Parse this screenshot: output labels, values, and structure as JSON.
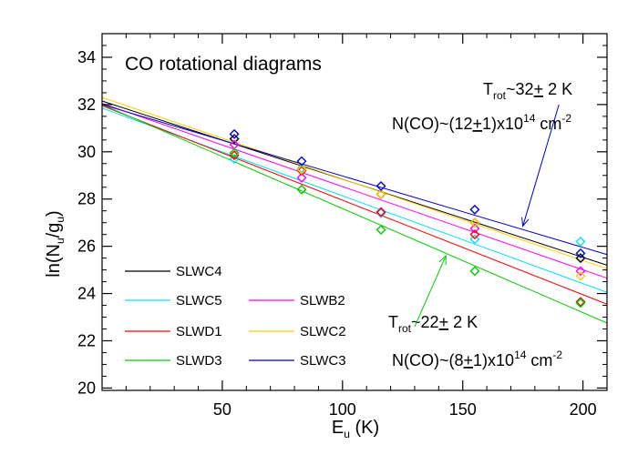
{
  "chart_data": {
    "type": "scatter",
    "title": "CO rotational diagrams",
    "xlabel": {
      "main": "E",
      "sub": "u",
      "tail": " (K)"
    },
    "ylabel": {
      "parts": [
        "ln(N",
        "u",
        "/g",
        "u",
        ")"
      ]
    },
    "xlim": [
      0,
      210
    ],
    "ylim": [
      19.9,
      35
    ],
    "x_ticks": [
      50,
      100,
      150,
      200
    ],
    "x_tick_labels": [
      "50",
      "100",
      "150",
      "200"
    ],
    "y_ticks": [
      20,
      22,
      24,
      26,
      28,
      30,
      32,
      34
    ],
    "y_tick_labels": [
      "20",
      "22",
      "24",
      "26",
      "28",
      "30",
      "32",
      "34"
    ],
    "grid": false,
    "legend_placement": "bottom-left",
    "series": [
      {
        "name": "SLWC4",
        "color": "#000000",
        "x": [
          55,
          83,
          116,
          155,
          199
        ],
        "y": [
          30.55,
          29.25,
          28.2,
          27.0,
          25.5
        ],
        "fit": [
          [
            0,
            32.15
          ],
          [
            210,
            25.2
          ]
        ]
      },
      {
        "name": "SLWC5",
        "color": "#00e0ff",
        "x": [
          55,
          83,
          116,
          155,
          199
        ],
        "y": [
          29.7,
          29.3,
          27.4,
          26.3,
          26.2
        ],
        "fit": [
          [
            0,
            31.85
          ],
          [
            210,
            24.05
          ]
        ]
      },
      {
        "name": "SLWB2",
        "color": "#ff00ff",
        "x": [
          55,
          83,
          116,
          155,
          199
        ],
        "y": [
          30.3,
          28.9,
          27.45,
          26.75,
          24.95
        ],
        "fit": [
          [
            0,
            32.05
          ],
          [
            210,
            24.65
          ]
        ]
      },
      {
        "name": "SLWD1",
        "color": "#ff0000",
        "x": [
          55,
          83,
          116,
          155,
          199
        ],
        "y": [
          29.85,
          29.2,
          27.45,
          26.5,
          23.65
        ],
        "fit": [
          [
            0,
            31.95
          ],
          [
            210,
            23.55
          ]
        ]
      },
      {
        "name": "SLWC2",
        "color": "#ffcc00",
        "x": [
          55,
          83,
          116,
          155,
          199
        ],
        "y": [
          29.95,
          29.25,
          28.2,
          27.0,
          24.75
        ],
        "fit": [
          [
            0,
            32.3
          ],
          [
            210,
            25.05
          ]
        ]
      },
      {
        "name": "SLWD3",
        "color": "#00cc00",
        "x": [
          55,
          83,
          116,
          155,
          199
        ],
        "y": [
          29.95,
          28.4,
          26.7,
          24.95,
          23.6
        ],
        "fit": [
          [
            0,
            32.0
          ],
          [
            210,
            22.75
          ]
        ]
      },
      {
        "name": "SLWC3",
        "color": "#0000cc",
        "x": [
          55,
          83,
          116,
          155,
          199
        ],
        "y": [
          30.75,
          29.6,
          28.55,
          27.55,
          25.7
        ],
        "fit": [
          [
            0,
            32.0
          ],
          [
            210,
            25.65
          ]
        ]
      }
    ],
    "legend_layout": [
      {
        "series": "SLWC4",
        "row": 0,
        "col": 0
      },
      {
        "series": "SLWC5",
        "row": 1,
        "col": 0
      },
      {
        "series": "SLWB2",
        "row": 1,
        "col": 1
      },
      {
        "series": "SLWD1",
        "row": 2,
        "col": 0
      },
      {
        "series": "SLWC2",
        "row": 2,
        "col": 1
      },
      {
        "series": "SLWD3",
        "row": 3,
        "col": 0
      },
      {
        "series": "SLWC3",
        "row": 3,
        "col": 1
      }
    ],
    "annotations": [
      {
        "id": "upper",
        "color": "#0000cc",
        "temp": {
          "prefix": "T",
          "sub": "rot",
          "value": "~32",
          "pm": "+",
          "rest": " 2 K"
        },
        "column": {
          "prefix": "N(CO)~(12",
          "pm": "+",
          "middle": "1)x10",
          "sup": "14",
          "rest": " cm",
          "sup2": "-2"
        },
        "arrow": {
          "from": [
            190,
            32.0
          ],
          "to": [
            175,
            26.85
          ]
        }
      },
      {
        "id": "lower",
        "color": "#00cc00",
        "temp": {
          "prefix": "T",
          "sub": "rot",
          "value": "~22",
          "pm": "+",
          "rest": " 2 K"
        },
        "column": {
          "prefix": "N(CO)~(8",
          "pm": "+",
          "middle": "1)x10",
          "sup": "14",
          "rest": " cm",
          "sup2": "-2"
        },
        "arrow": {
          "from": [
            130,
            22.6
          ],
          "to": [
            143,
            25.6
          ]
        }
      }
    ]
  }
}
